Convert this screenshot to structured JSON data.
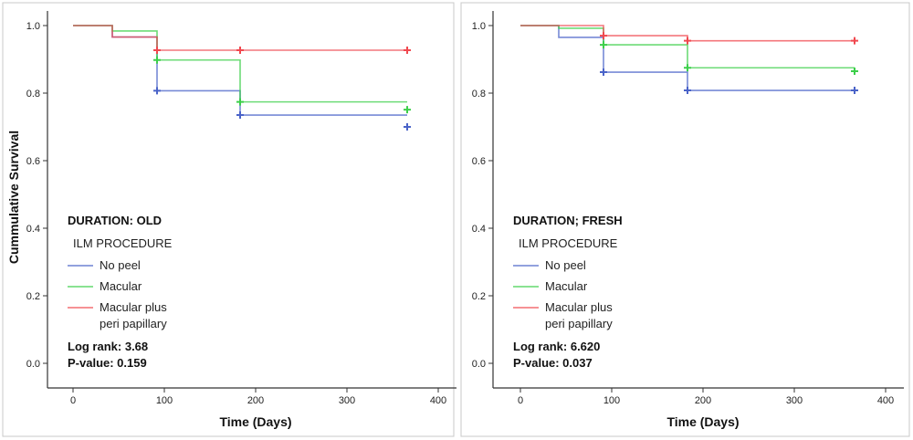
{
  "chart_data": [
    {
      "type": "line",
      "subtype": "kaplan-meier step",
      "title": "DURATION: OLD",
      "xlabel": "Time (Days)",
      "ylabel": "Cummulative Survival",
      "xlim": [
        0,
        400
      ],
      "ylim": [
        0.0,
        1.0
      ],
      "xticks": [
        "0",
        "100",
        "200",
        "300",
        "400"
      ],
      "yticks": [
        "0.0",
        "0.2",
        "0.4",
        "0.6",
        "0.8",
        "1.0"
      ],
      "legend_title": "ILM PROCEDURE",
      "stats": [
        "Log rank: 3.68",
        "P-value: 0.159"
      ],
      "series": [
        {
          "name": "No peel",
          "color": "#4a63c8",
          "steps": [
            [
              0,
              1.0
            ],
            [
              43,
              0.966
            ],
            [
              92,
              0.807
            ],
            [
              183,
              0.735
            ],
            [
              366,
              0.735
            ]
          ],
          "censored": [
            [
              92,
              0.807
            ],
            [
              183,
              0.735
            ],
            [
              366,
              0.7
            ]
          ]
        },
        {
          "name": "Macular",
          "color": "#3ccf4a",
          "steps": [
            [
              0,
              1.0
            ],
            [
              43,
              0.984
            ],
            [
              92,
              0.898
            ],
            [
              183,
              0.774
            ],
            [
              366,
              0.774
            ]
          ],
          "censored": [
            [
              92,
              0.898
            ],
            [
              183,
              0.774
            ],
            [
              366,
              0.751
            ]
          ]
        },
        {
          "name": "Macular plus\nperi papillary",
          "color": "#f0484f",
          "steps": [
            [
              0,
              1.0
            ],
            [
              43,
              0.966
            ],
            [
              92,
              0.927
            ],
            [
              366,
              0.927
            ]
          ],
          "censored": [
            [
              92,
              0.927
            ],
            [
              183,
              0.927
            ],
            [
              366,
              0.927
            ]
          ]
        }
      ]
    },
    {
      "type": "line",
      "subtype": "kaplan-meier step",
      "title": "DURATION; FRESH",
      "xlabel": "Time (Days)",
      "ylabel": "",
      "xlim": [
        0,
        400
      ],
      "ylim": [
        0.0,
        1.0
      ],
      "xticks": [
        "0",
        "100",
        "200",
        "300",
        "400"
      ],
      "yticks": [
        "0.0",
        "0.2",
        "0.4",
        "0.6",
        "0.8",
        "1.0"
      ],
      "legend_title": "ILM PROCEDURE",
      "stats": [
        "Log rank: 6.620",
        "P-value: 0.037"
      ],
      "series": [
        {
          "name": "No peel",
          "color": "#4a63c8",
          "steps": [
            [
              0,
              1.0
            ],
            [
              42,
              0.965
            ],
            [
              91,
              0.862
            ],
            [
              183,
              0.808
            ],
            [
              366,
              0.808
            ]
          ],
          "censored": [
            [
              91,
              0.862
            ],
            [
              183,
              0.808
            ],
            [
              366,
              0.808
            ]
          ]
        },
        {
          "name": "Macular",
          "color": "#3ccf4a",
          "steps": [
            [
              0,
              1.0
            ],
            [
              42,
              0.992
            ],
            [
              91,
              0.943
            ],
            [
              183,
              0.875
            ],
            [
              366,
              0.875
            ]
          ],
          "censored": [
            [
              91,
              0.943
            ],
            [
              183,
              0.875
            ],
            [
              366,
              0.865
            ]
          ]
        },
        {
          "name": "Macular plus\nperi papillary",
          "color": "#f0484f",
          "steps": [
            [
              0,
              1.0
            ],
            [
              91,
              0.97
            ],
            [
              183,
              0.955
            ],
            [
              366,
              0.955
            ]
          ],
          "censored": [
            [
              91,
              0.97
            ],
            [
              183,
              0.955
            ],
            [
              366,
              0.955
            ]
          ]
        }
      ]
    }
  ]
}
